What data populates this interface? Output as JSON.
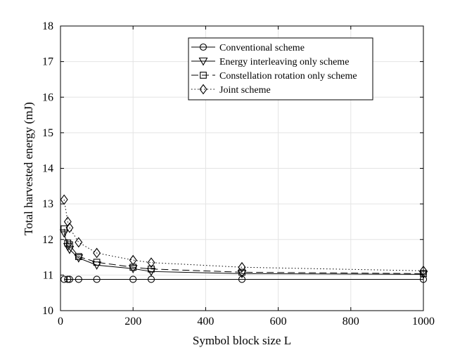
{
  "chart_data": {
    "type": "line",
    "title": "",
    "xlabel": "Symbol block size L",
    "ylabel": "Total harvested energy (mJ)",
    "xlim": [
      0,
      1000
    ],
    "ylim": [
      10,
      18
    ],
    "xticks": [
      0,
      200,
      400,
      600,
      800,
      1000
    ],
    "yticks": [
      10,
      11,
      12,
      13,
      14,
      15,
      16,
      17,
      18
    ],
    "grid": true,
    "legend_position": "top-right",
    "x_markers": [
      10,
      20,
      25,
      50,
      100,
      200,
      250,
      500,
      1000
    ],
    "series": [
      {
        "name": "Conventional scheme",
        "line": "solid",
        "marker": "circle",
        "curve_x": [
          10,
          1000
        ],
        "curve_y": [
          10.88,
          10.88
        ],
        "x": [
          10,
          20,
          25,
          50,
          100,
          200,
          250,
          500,
          1000
        ],
        "y": [
          10.88,
          10.88,
          10.88,
          10.88,
          10.88,
          10.88,
          10.88,
          10.88,
          10.88
        ]
      },
      {
        "name": "Energy interleaving only scheme",
        "line": "solid",
        "marker": "triangle-down",
        "curve_x": [
          10,
          20,
          25,
          50,
          100,
          200,
          250,
          500,
          1000
        ],
        "curve_y": [
          12.18,
          11.8,
          11.72,
          11.48,
          11.28,
          11.18,
          11.1,
          11.04,
          11.02
        ],
        "x": [
          10,
          20,
          25,
          50,
          100,
          200,
          250,
          500,
          1000
        ],
        "y": [
          12.18,
          11.8,
          11.72,
          11.48,
          11.28,
          11.18,
          11.1,
          11.04,
          11.02
        ]
      },
      {
        "name": "Constellation rotation only scheme",
        "line": "dashed",
        "marker": "square",
        "curve_x": [
          10,
          20,
          25,
          50,
          100,
          200,
          250,
          500,
          1000
        ],
        "curve_y": [
          12.3,
          11.9,
          11.85,
          11.52,
          11.36,
          11.22,
          11.17,
          11.08,
          11.04
        ],
        "x": [
          10,
          20,
          25,
          50,
          100,
          200,
          250,
          500,
          1000
        ],
        "y": [
          12.3,
          11.9,
          11.85,
          11.52,
          11.36,
          11.22,
          11.17,
          11.08,
          11.04
        ]
      },
      {
        "name": "Joint scheme",
        "line": "dotted",
        "marker": "diamond",
        "curve_x": [
          10,
          20,
          25,
          50,
          100,
          200,
          250,
          500,
          1000
        ],
        "curve_y": [
          13.12,
          12.5,
          12.33,
          11.92,
          11.62,
          11.42,
          11.35,
          11.22,
          11.12
        ],
        "x": [
          10,
          20,
          25,
          50,
          100,
          200,
          250,
          500,
          1000
        ],
        "y": [
          13.12,
          12.5,
          12.33,
          11.92,
          11.62,
          11.42,
          11.35,
          11.22,
          11.12
        ]
      }
    ]
  }
}
